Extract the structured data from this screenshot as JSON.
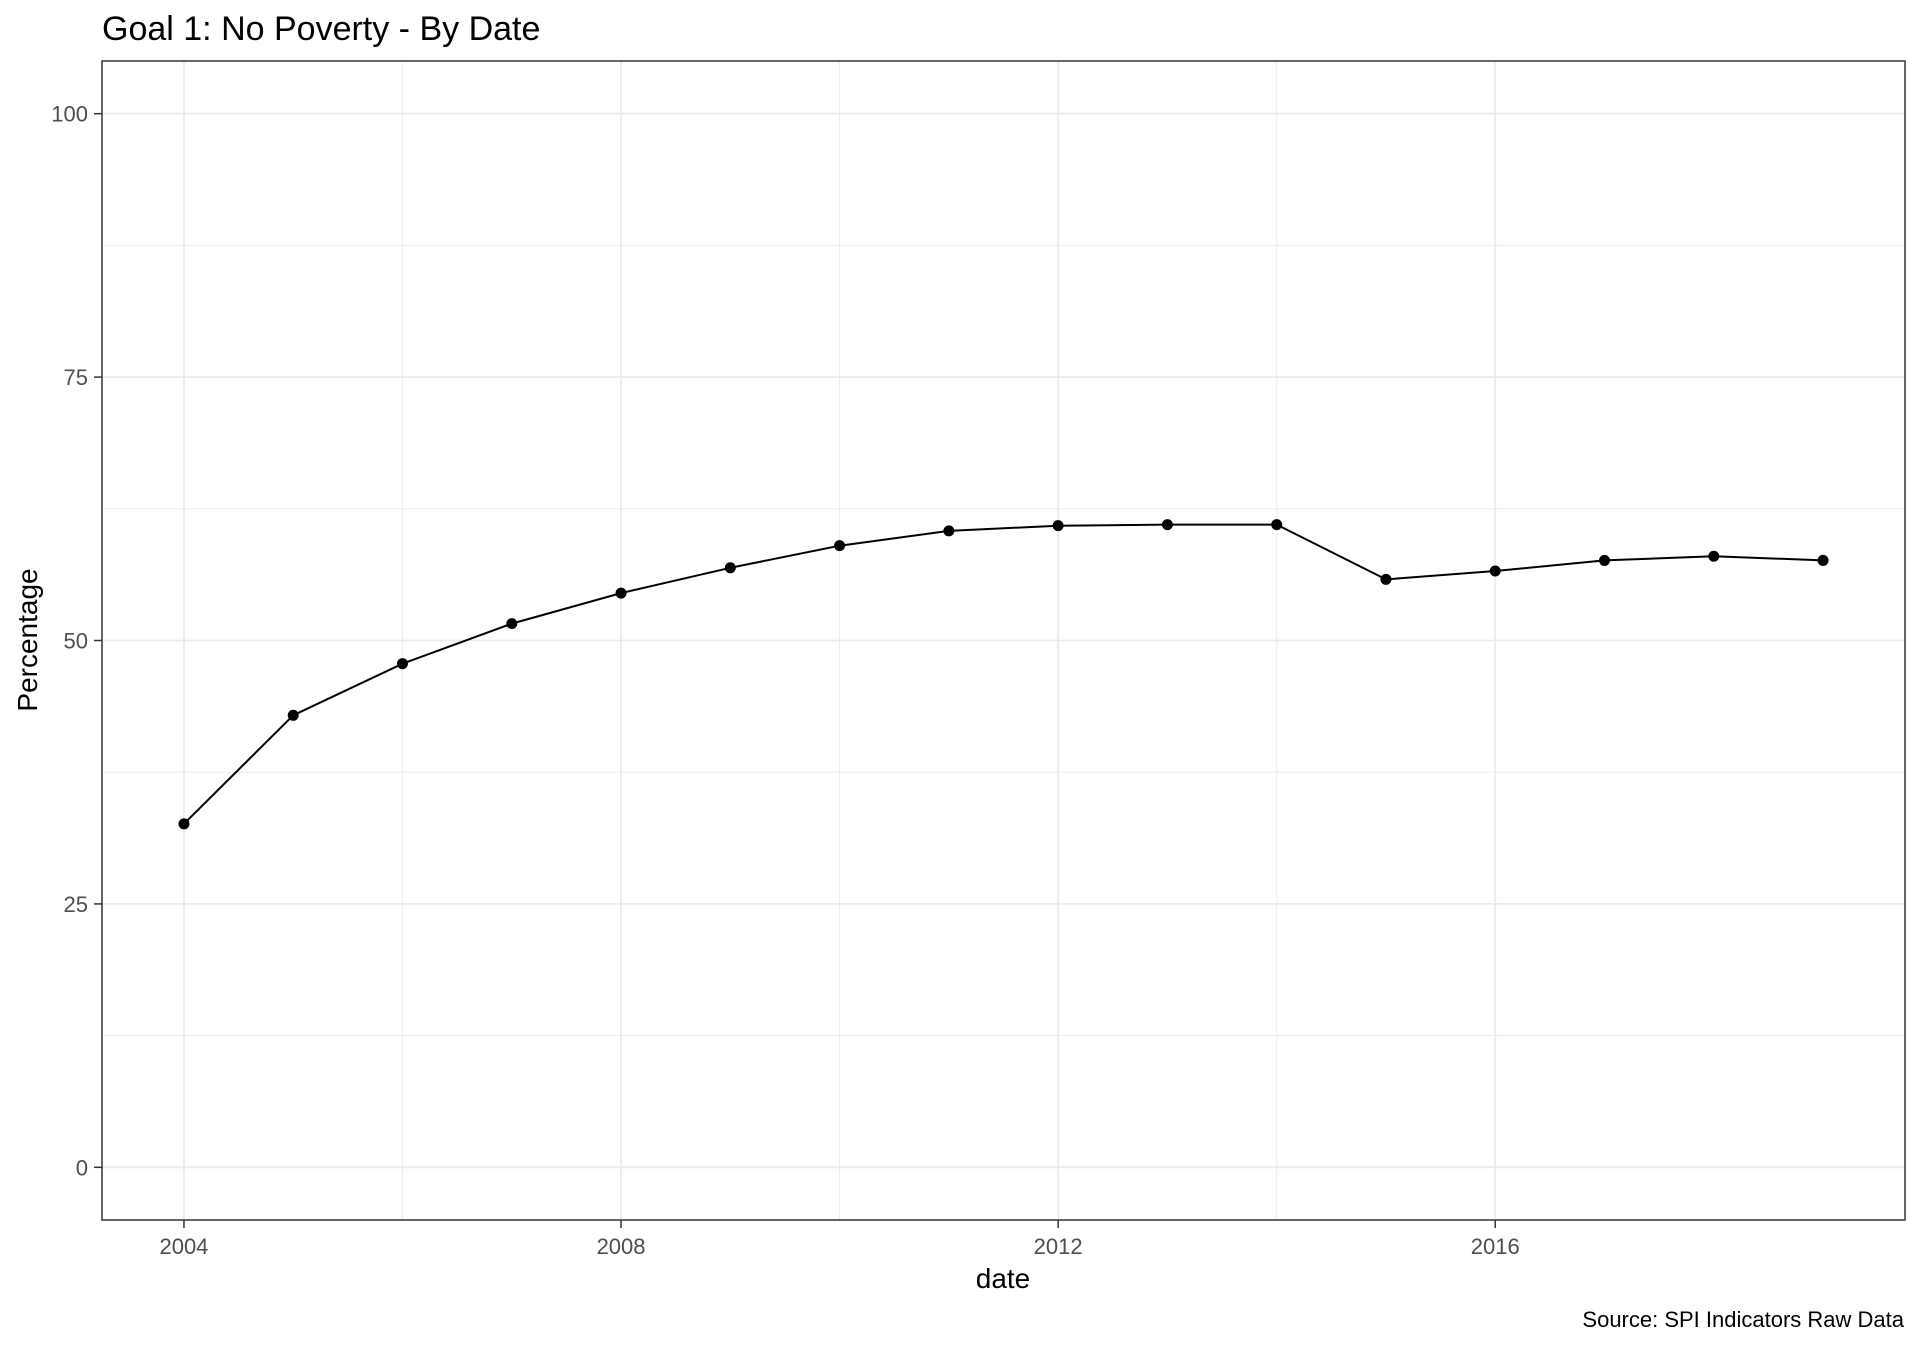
{
  "chart_data": {
    "type": "line",
    "title": "Goal 1: No Poverty - By Date",
    "xlabel": "date",
    "ylabel": "Percentage",
    "caption": "Source: SPI Indicators Raw Data",
    "x_ticks": [
      2004,
      2008,
      2012,
      2016
    ],
    "y_ticks": [
      0,
      25,
      50,
      75,
      100
    ],
    "xlim": [
      2003.25,
      2019.75
    ],
    "ylim": [
      -5,
      105
    ],
    "grid": true,
    "points_marked": true,
    "series": [
      {
        "x": [
          2004,
          2005,
          2006,
          2007,
          2008,
          2009,
          2010,
          2011,
          2012,
          2013,
          2014,
          2015,
          2016,
          2017,
          2018,
          2019
        ],
        "values": [
          32.6,
          42.9,
          47.8,
          51.6,
          54.5,
          56.9,
          59.0,
          60.4,
          60.9,
          61.0,
          61.0,
          55.8,
          56.6,
          57.6,
          58.0,
          57.6
        ]
      }
    ],
    "colors": {
      "line": "#000000",
      "point": "#000000",
      "grid": "#ebebeb",
      "panel_border": "#333333",
      "tick_label": "#4d4d4d"
    }
  }
}
